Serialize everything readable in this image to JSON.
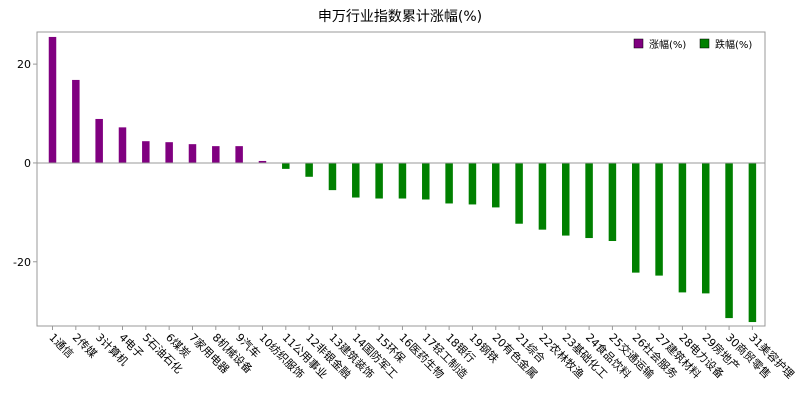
{
  "chart_data": {
    "type": "bar",
    "title": "申万行业指数累计涨幅(%)",
    "xlabel": "",
    "ylabel": "",
    "ylim": [
      -33,
      26.5
    ],
    "yticks": [
      20,
      0,
      -20
    ],
    "grid": false,
    "legend_position": "top-right",
    "categories": [
      "1通信",
      "2传媒",
      "3计算机",
      "4电子",
      "5石油石化",
      "6煤炭",
      "7家用电器",
      "8机械设备",
      "9汽车",
      "10纺织服饰",
      "11公用事业",
      "12非银金融",
      "13建筑装饰",
      "14国防军工",
      "15环保",
      "16医药生物",
      "17轻工制造",
      "18银行",
      "19钢铁",
      "20有色金属",
      "21综合",
      "22农林牧渔",
      "23基础化工",
      "24食品饮料",
      "25交通运输",
      "26社会服务",
      "27建筑材料",
      "28电力设备",
      "29房地产",
      "30商贸零售",
      "31美容护理"
    ],
    "values": [
      25.5,
      16.8,
      8.9,
      7.2,
      4.4,
      4.2,
      3.8,
      3.4,
      3.4,
      0.4,
      -1.2,
      -2.8,
      -5.5,
      -7.0,
      -7.2,
      -7.2,
      -7.4,
      -8.2,
      -8.4,
      -9.0,
      -12.3,
      -13.5,
      -14.7,
      -15.2,
      -15.8,
      -22.2,
      -22.8,
      -26.2,
      -26.4,
      -31.4,
      -32.2
    ],
    "series": [
      {
        "name": "涨幅(%)",
        "color": "#800080"
      },
      {
        "name": "跌幅(%)",
        "color": "#008000"
      }
    ]
  }
}
